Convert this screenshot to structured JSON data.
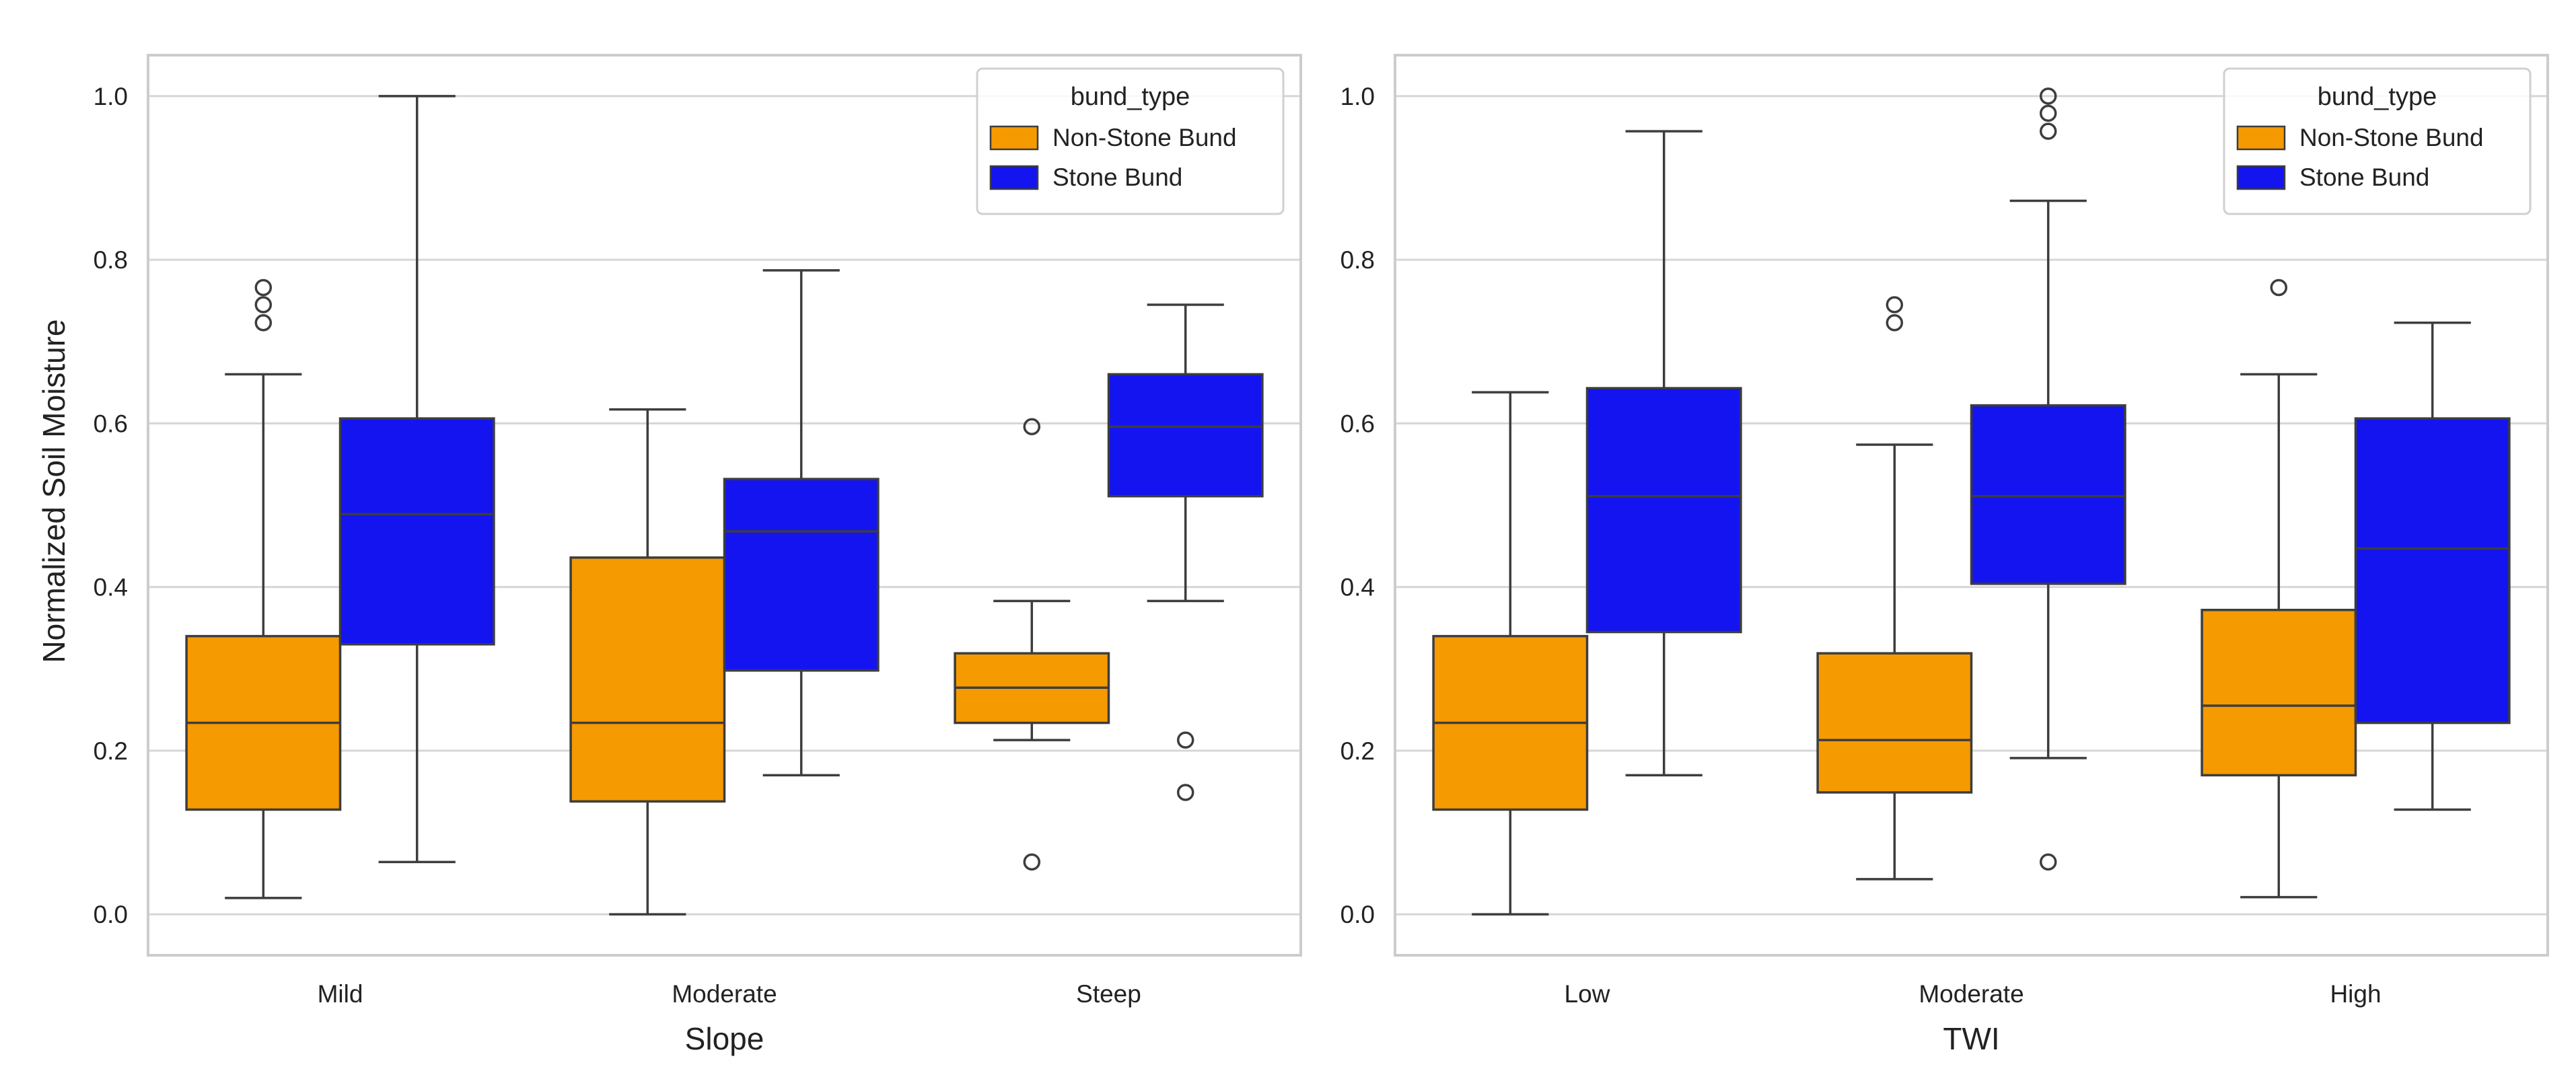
{
  "figure": {
    "ylabel": "Normalized Soil Moisture",
    "legend_title": "bund_type",
    "legend_placement": "top-right",
    "colors": {
      "Non-Stone Bund": "#f59a00",
      "Stone Bund": "#1414f0"
    }
  },
  "chart_data": [
    {
      "type": "box",
      "xlabel": "Slope",
      "ylabel": "Normalized Soil Moisture",
      "ylim": [
        -0.05,
        1.05
      ],
      "yticks": [
        "0.0",
        "0.2",
        "0.4",
        "0.6",
        "0.8",
        "1.0"
      ],
      "grid": true,
      "categories": [
        "Mild",
        "Moderate",
        "Steep"
      ],
      "legend": {
        "title": "bund_type",
        "entries": [
          "Non-Stone Bund",
          "Stone Bund"
        ],
        "placement": "top-right"
      },
      "series": [
        {
          "name": "Non-Stone Bund",
          "boxes": [
            {
              "whislo": 0.02,
              "q1": 0.128,
              "med": 0.234,
              "q3": 0.34,
              "whishi": 0.66,
              "fliers": [
                0.723,
                0.745,
                0.766
              ]
            },
            {
              "whislo": 0.0,
              "q1": 0.138,
              "med": 0.234,
              "q3": 0.436,
              "whishi": 0.617,
              "fliers": []
            },
            {
              "whislo": 0.213,
              "q1": 0.234,
              "med": 0.277,
              "q3": 0.319,
              "whishi": 0.383,
              "fliers": [
                0.064,
                0.596
              ]
            }
          ]
        },
        {
          "name": "Stone Bund",
          "boxes": [
            {
              "whislo": 0.064,
              "q1": 0.33,
              "med": 0.489,
              "q3": 0.606,
              "whishi": 1.0,
              "fliers": []
            },
            {
              "whislo": 0.17,
              "q1": 0.298,
              "med": 0.468,
              "q3": 0.532,
              "whishi": 0.787,
              "fliers": []
            },
            {
              "whislo": 0.383,
              "q1": 0.511,
              "med": 0.596,
              "q3": 0.66,
              "whishi": 0.745,
              "fliers": [
                0.149,
                0.213
              ]
            }
          ]
        }
      ]
    },
    {
      "type": "box",
      "xlabel": "TWI",
      "ylabel": "",
      "ylim": [
        -0.05,
        1.05
      ],
      "yticks": [
        "0.0",
        "0.2",
        "0.4",
        "0.6",
        "0.8",
        "1.0"
      ],
      "grid": true,
      "categories": [
        "Low",
        "Moderate",
        "High"
      ],
      "legend": {
        "title": "bund_type",
        "entries": [
          "Non-Stone Bund",
          "Stone Bund"
        ],
        "placement": "top-right"
      },
      "series": [
        {
          "name": "Non-Stone Bund",
          "boxes": [
            {
              "whislo": 0.0,
              "q1": 0.128,
              "med": 0.234,
              "q3": 0.34,
              "whishi": 0.638,
              "fliers": []
            },
            {
              "whislo": 0.043,
              "q1": 0.149,
              "med": 0.213,
              "q3": 0.319,
              "whishi": 0.574,
              "fliers": [
                0.723,
                0.745
              ]
            },
            {
              "whislo": 0.021,
              "q1": 0.17,
              "med": 0.255,
              "q3": 0.372,
              "whishi": 0.66,
              "fliers": [
                0.766
              ]
            }
          ]
        },
        {
          "name": "Stone Bund",
          "boxes": [
            {
              "whislo": 0.17,
              "q1": 0.345,
              "med": 0.511,
              "q3": 0.643,
              "whishi": 0.957,
              "fliers": []
            },
            {
              "whislo": 0.191,
              "q1": 0.404,
              "med": 0.511,
              "q3": 0.622,
              "whishi": 0.872,
              "fliers": [
                0.064,
                0.957,
                0.979,
                1.0
              ]
            },
            {
              "whislo": 0.128,
              "q1": 0.234,
              "med": 0.447,
              "q3": 0.606,
              "whishi": 0.723,
              "fliers": []
            }
          ]
        }
      ]
    }
  ]
}
